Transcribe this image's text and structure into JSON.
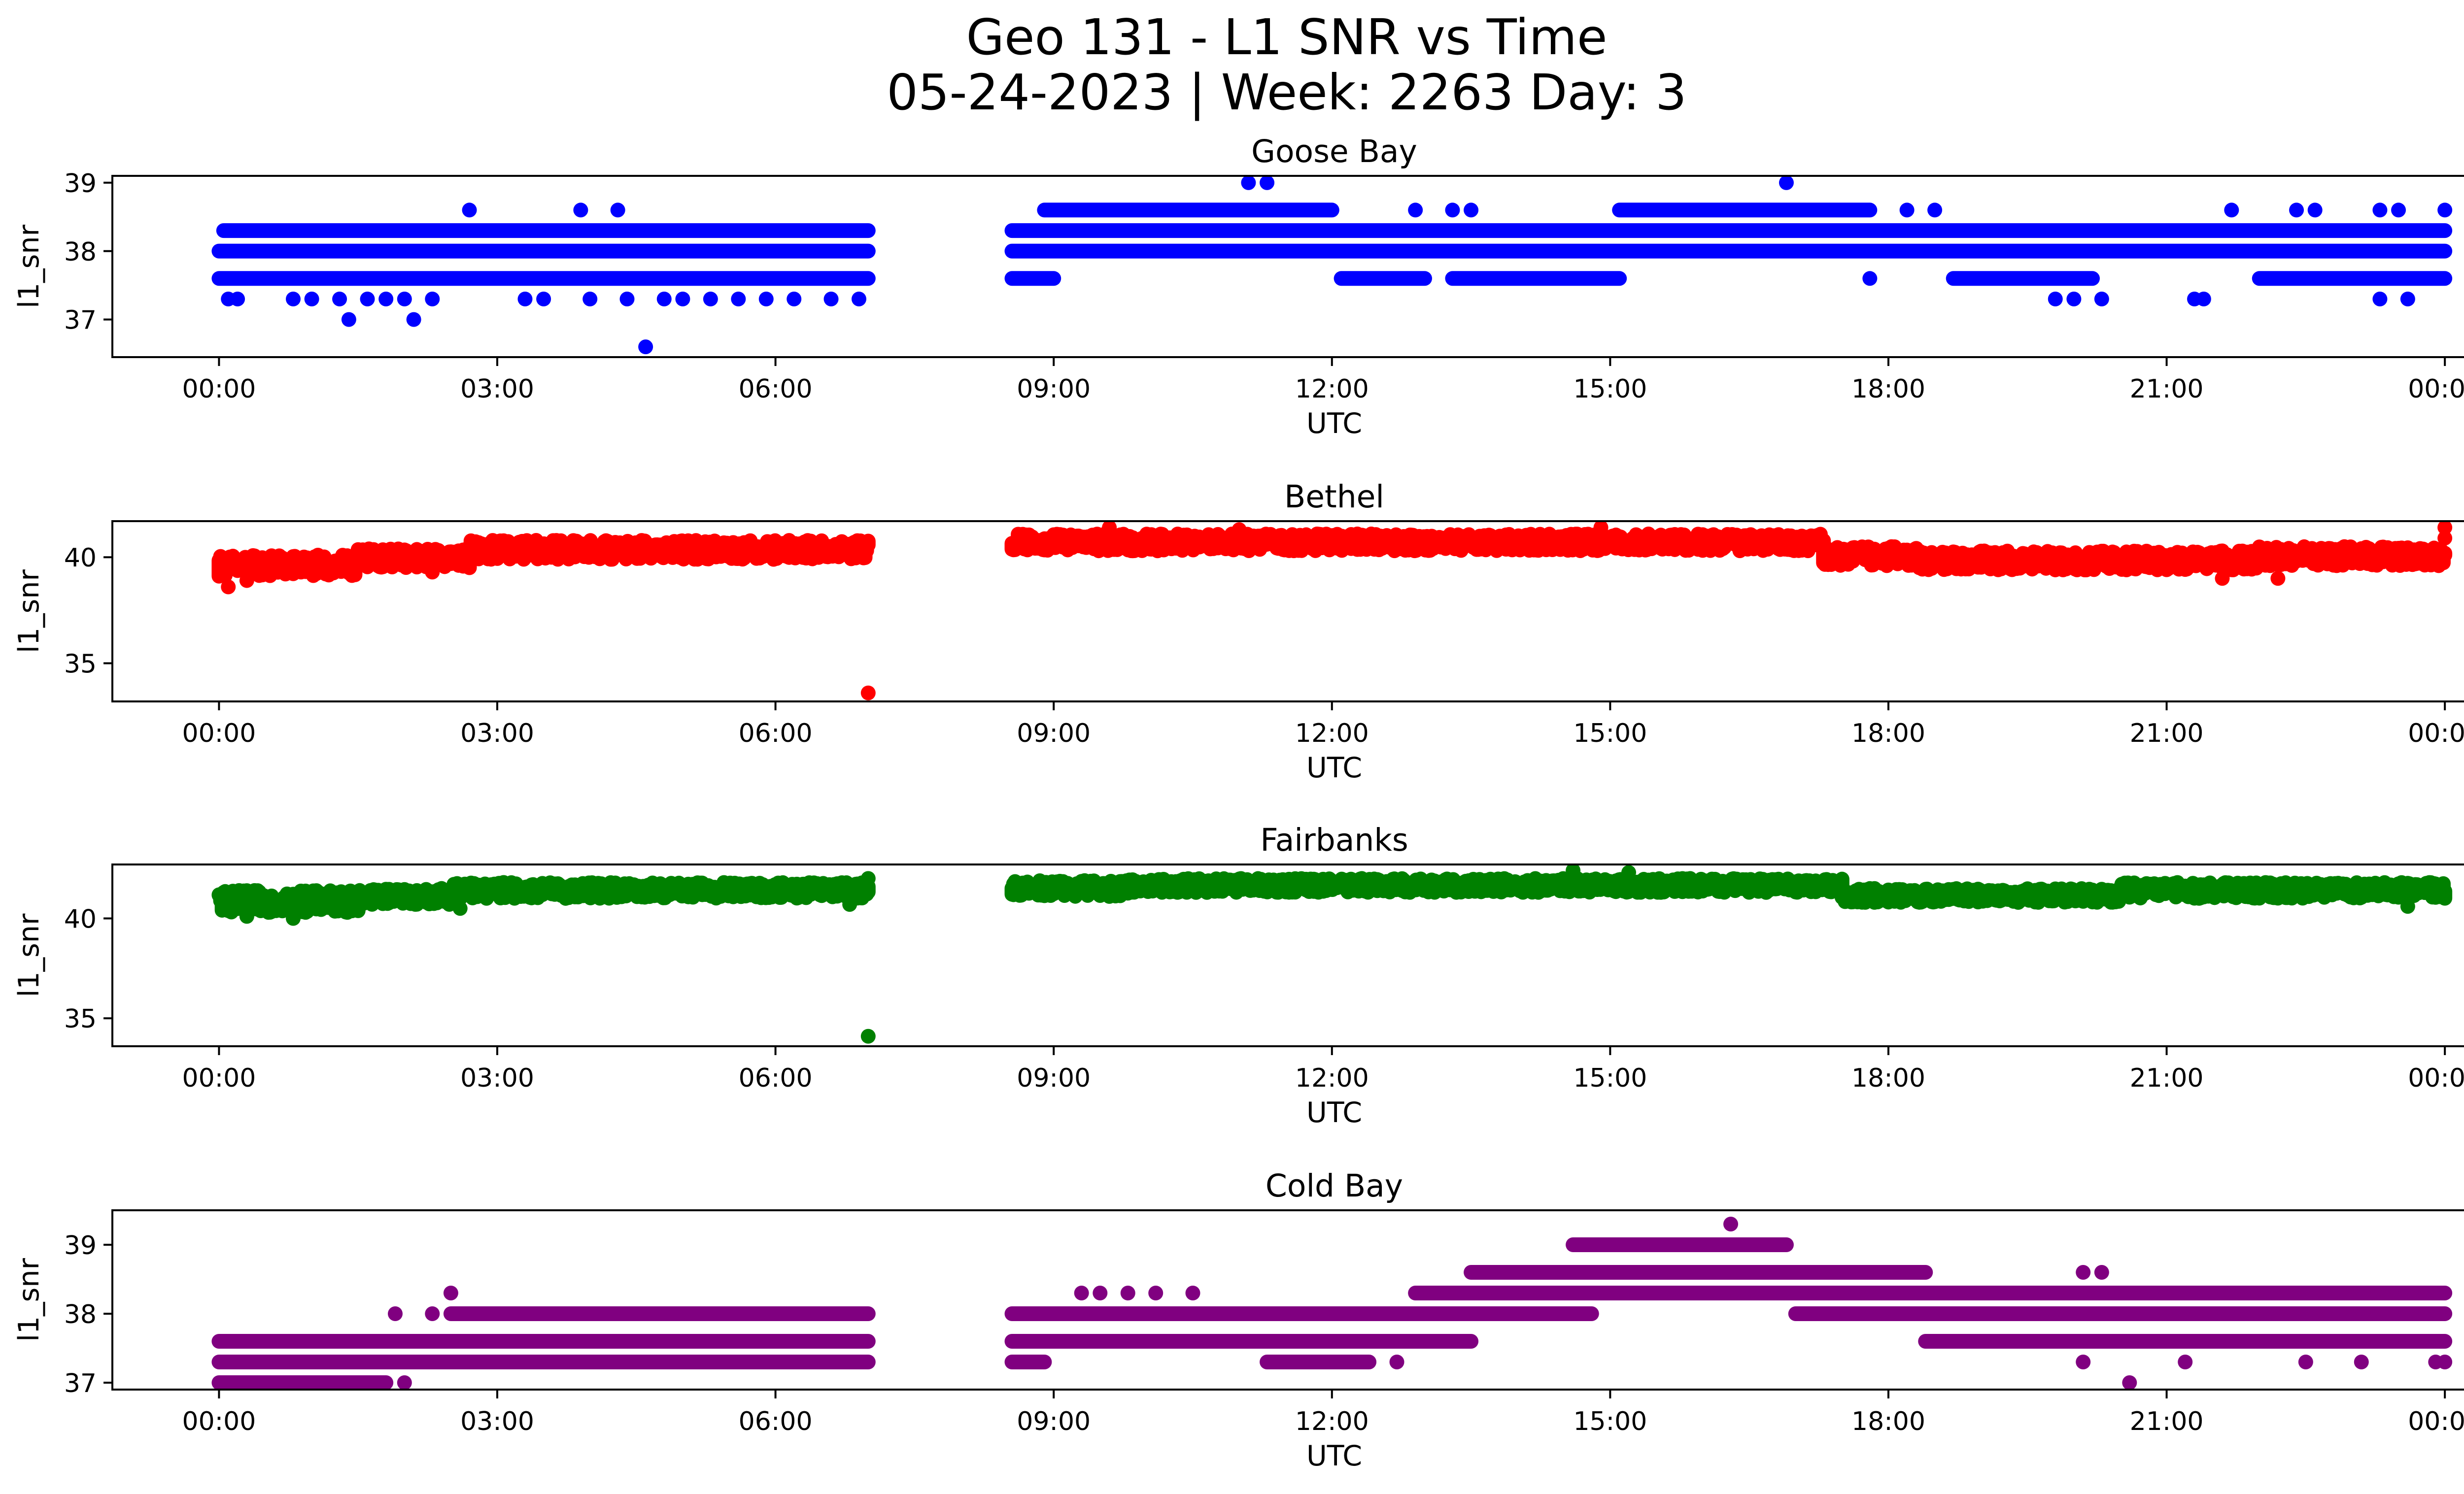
{
  "figure": {
    "title_line1": "Geo 131 - L1 SNR vs Time",
    "title_line2": "05-24-2023 | Week: 2263 Day: 3"
  },
  "chart_data": [
    {
      "type": "scatter",
      "title": "Goose Bay",
      "xlabel": "UTC",
      "ylabel": "l1_snr",
      "color": "#0000ff",
      "xlim": [
        -1.15,
        25.2
      ],
      "ylim": [
        36.45,
        39.1
      ],
      "xticks": [
        0,
        3,
        6,
        9,
        12,
        15,
        18,
        21,
        24
      ],
      "xtick_labels": [
        "00:00",
        "03:00",
        "06:00",
        "09:00",
        "12:00",
        "15:00",
        "18:00",
        "21:00",
        "00:00"
      ],
      "yticks": [
        37,
        38,
        39
      ],
      "gaps": [
        [
          7.0,
          8.55
        ]
      ],
      "bands": [
        {
          "y": 37.6,
          "ranges": [
            [
              0.0,
              7.0
            ],
            [
              8.55,
              9.0
            ],
            [
              12.1,
              13.0
            ],
            [
              13.3,
              15.1
            ],
            [
              17.8,
              17.8
            ],
            [
              18.7,
              20.2
            ],
            [
              22.0,
              24.0
            ]
          ]
        },
        {
          "y": 38.0,
          "ranges": [
            [
              0.0,
              7.0
            ],
            [
              8.55,
              24.0
            ]
          ]
        },
        {
          "y": 38.3,
          "ranges": [
            [
              0.05,
              7.0
            ],
            [
              8.55,
              24.0
            ]
          ]
        },
        {
          "y": 38.6,
          "ranges": [
            [
              8.9,
              12.0
            ],
            [
              15.1,
              17.8
            ]
          ]
        }
      ],
      "points": [
        {
          "x": 0.1,
          "y": 37.3
        },
        {
          "x": 0.2,
          "y": 37.3
        },
        {
          "x": 0.8,
          "y": 37.3
        },
        {
          "x": 1.0,
          "y": 37.3
        },
        {
          "x": 1.3,
          "y": 37.3
        },
        {
          "x": 1.4,
          "y": 37.0
        },
        {
          "x": 1.6,
          "y": 37.3
        },
        {
          "x": 1.8,
          "y": 37.3
        },
        {
          "x": 2.0,
          "y": 37.3
        },
        {
          "x": 2.1,
          "y": 37.0
        },
        {
          "x": 2.3,
          "y": 37.3
        },
        {
          "x": 2.7,
          "y": 38.6
        },
        {
          "x": 3.3,
          "y": 37.3
        },
        {
          "x": 3.5,
          "y": 37.3
        },
        {
          "x": 3.9,
          "y": 38.6
        },
        {
          "x": 4.0,
          "y": 37.3
        },
        {
          "x": 4.3,
          "y": 38.6
        },
        {
          "x": 4.4,
          "y": 37.3
        },
        {
          "x": 4.6,
          "y": 36.6
        },
        {
          "x": 4.8,
          "y": 37.3
        },
        {
          "x": 5.0,
          "y": 37.3
        },
        {
          "x": 5.3,
          "y": 37.3
        },
        {
          "x": 5.6,
          "y": 37.3
        },
        {
          "x": 5.9,
          "y": 37.3
        },
        {
          "x": 6.2,
          "y": 37.3
        },
        {
          "x": 6.6,
          "y": 37.3
        },
        {
          "x": 6.9,
          "y": 37.3
        },
        {
          "x": 11.1,
          "y": 39.0
        },
        {
          "x": 11.3,
          "y": 39.0
        },
        {
          "x": 12.9,
          "y": 38.6
        },
        {
          "x": 13.3,
          "y": 38.6
        },
        {
          "x": 13.5,
          "y": 38.6
        },
        {
          "x": 16.9,
          "y": 39.0
        },
        {
          "x": 18.2,
          "y": 38.6
        },
        {
          "x": 18.5,
          "y": 38.6
        },
        {
          "x": 19.8,
          "y": 37.3
        },
        {
          "x": 20.0,
          "y": 37.3
        },
        {
          "x": 20.3,
          "y": 37.3
        },
        {
          "x": 21.3,
          "y": 37.3
        },
        {
          "x": 21.4,
          "y": 37.3
        },
        {
          "x": 21.7,
          "y": 38.6
        },
        {
          "x": 22.4,
          "y": 38.6
        },
        {
          "x": 22.6,
          "y": 38.6
        },
        {
          "x": 23.3,
          "y": 37.3
        },
        {
          "x": 23.3,
          "y": 38.6
        },
        {
          "x": 23.5,
          "y": 38.6
        },
        {
          "x": 23.6,
          "y": 37.3
        },
        {
          "x": 24.0,
          "y": 38.6
        }
      ]
    },
    {
      "type": "scatter",
      "title": "Bethel",
      "xlabel": "UTC",
      "ylabel": "l1_snr",
      "color": "#ff0000",
      "xlim": [
        -1.15,
        25.2
      ],
      "ylim": [
        33.2,
        41.7
      ],
      "xticks": [
        0,
        3,
        6,
        9,
        12,
        15,
        18,
        21,
        24
      ],
      "xtick_labels": [
        "00:00",
        "03:00",
        "06:00",
        "09:00",
        "12:00",
        "15:00",
        "18:00",
        "21:00",
        "00:00"
      ],
      "yticks": [
        35,
        40
      ],
      "gaps": [
        [
          7.0,
          8.55
        ]
      ],
      "bands": [
        {
          "y0": 39.1,
          "y1": 40.1,
          "x0": 0.0,
          "x1": 1.5
        },
        {
          "y0": 39.5,
          "y1": 40.4,
          "x0": 1.5,
          "x1": 2.7
        },
        {
          "y0": 39.9,
          "y1": 40.8,
          "x0": 2.7,
          "x1": 7.0
        },
        {
          "y0": 40.3,
          "y1": 41.1,
          "x0": 8.55,
          "x1": 17.3
        },
        {
          "y0": 39.6,
          "y1": 40.5,
          "x0": 17.3,
          "x1": 18.3
        },
        {
          "y0": 39.4,
          "y1": 40.3,
          "x0": 18.3,
          "x1": 22.0
        },
        {
          "y0": 39.6,
          "y1": 40.5,
          "x0": 22.0,
          "x1": 24.0
        }
      ],
      "points": [
        {
          "x": 0.1,
          "y": 38.6
        },
        {
          "x": 0.3,
          "y": 38.9
        },
        {
          "x": 2.3,
          "y": 39.3
        },
        {
          "x": 7.0,
          "y": 33.6
        },
        {
          "x": 9.6,
          "y": 41.4
        },
        {
          "x": 11.0,
          "y": 41.3
        },
        {
          "x": 14.9,
          "y": 41.4
        },
        {
          "x": 21.6,
          "y": 39.0
        },
        {
          "x": 22.2,
          "y": 39.0
        },
        {
          "x": 24.0,
          "y": 41.4
        },
        {
          "x": 24.0,
          "y": 40.9
        }
      ]
    },
    {
      "type": "scatter",
      "title": "Fairbanks",
      "xlabel": "UTC",
      "ylabel": "l1_snr",
      "color": "#008000",
      "xlim": [
        -1.15,
        25.2
      ],
      "ylim": [
        33.6,
        42.7
      ],
      "xticks": [
        0,
        3,
        6,
        9,
        12,
        15,
        18,
        21,
        24
      ],
      "xtick_labels": [
        "00:00",
        "03:00",
        "06:00",
        "09:00",
        "12:00",
        "15:00",
        "18:00",
        "21:00",
        "00:00"
      ],
      "yticks": [
        35,
        40
      ],
      "gaps": [
        [
          7.0,
          8.55
        ]
      ],
      "bands": [
        {
          "y0": 40.3,
          "y1": 41.4,
          "x0": 0.0,
          "x1": 1.5
        },
        {
          "y0": 40.7,
          "y1": 41.5,
          "x0": 1.5,
          "x1": 2.5
        },
        {
          "y0": 41.0,
          "y1": 41.8,
          "x0": 2.5,
          "x1": 7.0
        },
        {
          "y0": 41.1,
          "y1": 41.9,
          "x0": 8.55,
          "x1": 9.8
        },
        {
          "y0": 41.3,
          "y1": 42.0,
          "x0": 9.8,
          "x1": 17.5
        },
        {
          "y0": 40.8,
          "y1": 41.5,
          "x0": 17.5,
          "x1": 20.5
        },
        {
          "y0": 41.0,
          "y1": 41.8,
          "x0": 20.5,
          "x1": 24.0
        }
      ],
      "points": [
        {
          "x": 0.3,
          "y": 40.1
        },
        {
          "x": 0.8,
          "y": 40.0
        },
        {
          "x": 2.6,
          "y": 40.5
        },
        {
          "x": 6.8,
          "y": 40.7
        },
        {
          "x": 7.0,
          "y": 42.0
        },
        {
          "x": 7.0,
          "y": 34.1
        },
        {
          "x": 14.6,
          "y": 42.4
        },
        {
          "x": 15.2,
          "y": 42.3
        },
        {
          "x": 23.6,
          "y": 40.6
        }
      ]
    },
    {
      "type": "scatter",
      "title": "Cold Bay",
      "xlabel": "UTC",
      "ylabel": "l1_snr",
      "color": "#800080",
      "xlim": [
        -1.15,
        25.2
      ],
      "ylim": [
        36.9,
        39.5
      ],
      "xticks": [
        0,
        3,
        6,
        9,
        12,
        15,
        18,
        21,
        24
      ],
      "xtick_labels": [
        "00:00",
        "03:00",
        "06:00",
        "09:00",
        "12:00",
        "15:00",
        "18:00",
        "21:00",
        "00:00"
      ],
      "yticks": [
        37,
        38,
        39
      ],
      "gaps": [
        [
          7.0,
          8.55
        ]
      ],
      "bands": [
        {
          "y": 37.0,
          "ranges": [
            [
              0.0,
              1.8
            ]
          ]
        },
        {
          "y": 37.3,
          "ranges": [
            [
              0.0,
              7.0
            ],
            [
              8.55,
              8.9
            ],
            [
              11.3,
              12.4
            ]
          ]
        },
        {
          "y": 37.6,
          "ranges": [
            [
              0.0,
              7.0
            ],
            [
              8.55,
              13.5
            ],
            [
              18.4,
              24.0
            ]
          ]
        },
        {
          "y": 38.0,
          "ranges": [
            [
              2.5,
              7.0
            ],
            [
              8.55,
              14.8
            ],
            [
              17.0,
              24.0
            ]
          ]
        },
        {
          "y": 38.3,
          "ranges": [
            [
              12.9,
              24.0
            ]
          ]
        },
        {
          "y": 38.6,
          "ranges": [
            [
              13.5,
              18.4
            ]
          ]
        },
        {
          "y": 39.0,
          "ranges": [
            [
              14.6,
              16.9
            ]
          ]
        }
      ],
      "points": [
        {
          "x": 1.9,
          "y": 38.0
        },
        {
          "x": 2.0,
          "y": 37.0
        },
        {
          "x": 2.3,
          "y": 38.0
        },
        {
          "x": 2.5,
          "y": 38.3
        },
        {
          "x": 9.3,
          "y": 38.3
        },
        {
          "x": 9.5,
          "y": 38.3
        },
        {
          "x": 9.8,
          "y": 38.3
        },
        {
          "x": 10.1,
          "y": 38.3
        },
        {
          "x": 10.5,
          "y": 38.3
        },
        {
          "x": 12.7,
          "y": 37.3
        },
        {
          "x": 16.3,
          "y": 39.3
        },
        {
          "x": 20.1,
          "y": 37.3
        },
        {
          "x": 20.1,
          "y": 38.6
        },
        {
          "x": 20.3,
          "y": 38.6
        },
        {
          "x": 20.6,
          "y": 37.0
        },
        {
          "x": 21.2,
          "y": 37.3
        },
        {
          "x": 22.5,
          "y": 37.3
        },
        {
          "x": 23.1,
          "y": 37.3
        },
        {
          "x": 22.4,
          "y": 38.3
        },
        {
          "x": 23.1,
          "y": 38.3
        },
        {
          "x": 23.5,
          "y": 38.3
        },
        {
          "x": 23.9,
          "y": 37.3
        },
        {
          "x": 24.0,
          "y": 37.3
        }
      ]
    }
  ]
}
